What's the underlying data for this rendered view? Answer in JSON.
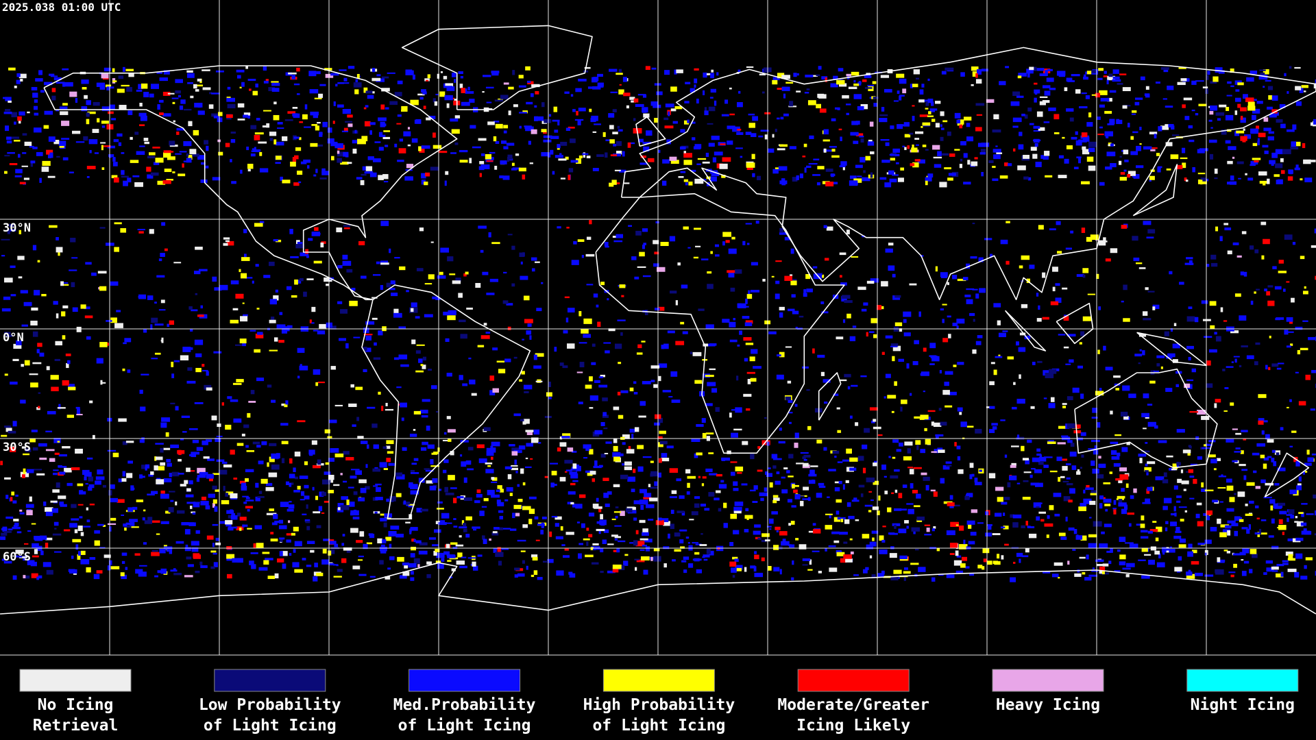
{
  "header": {
    "timestamp": "2025.038 01:00 UTC"
  },
  "map": {
    "latitude_labels": [
      "30°N",
      "0°N",
      "30°S",
      "60°S"
    ]
  },
  "legend": {
    "items": [
      {
        "label_lines": [
          "No Icing",
          "Retrieval"
        ],
        "color": "#eeeeee"
      },
      {
        "label_lines": [
          "Low Probability",
          "of Light Icing"
        ],
        "color": "#0a0a78"
      },
      {
        "label_lines": [
          "Med.Probability",
          "of Light Icing"
        ],
        "color": "#0a0aff"
      },
      {
        "label_lines": [
          "High Probability",
          "of Light Icing"
        ],
        "color": "#ffff00"
      },
      {
        "label_lines": [
          "Moderate/Greater",
          "Icing Likely"
        ],
        "color": "#ff0000"
      },
      {
        "label_lines": [
          "Heavy Icing"
        ],
        "color": "#e8a6e8"
      },
      {
        "label_lines": [
          "Night Icing"
        ],
        "color": "#00ffff"
      }
    ]
  }
}
